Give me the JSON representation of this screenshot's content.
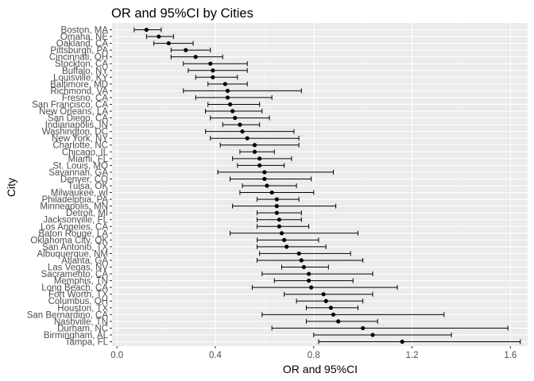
{
  "chart_data": {
    "type": "errorbar",
    "title": "OR and 95%CI by Cities",
    "xlabel": "OR and 95%CI",
    "ylabel": "City",
    "xlim": [
      -0.02,
      1.67
    ],
    "x_ticks": [
      0.0,
      0.4,
      0.8,
      1.2,
      1.6
    ],
    "x_tick_labels": [
      "0.0",
      "0.4",
      "0.8",
      "1.2",
      "1.6"
    ],
    "grid": true,
    "legend": "none",
    "points": [
      {
        "city": "Boston, MA",
        "or": 0.12,
        "lower": 0.07,
        "upper": 0.18
      },
      {
        "city": "Omaha, NE",
        "or": 0.17,
        "lower": 0.12,
        "upper": 0.23
      },
      {
        "city": "Oakland, CA",
        "or": 0.21,
        "lower": 0.15,
        "upper": 0.31
      },
      {
        "city": "Pittsburgh, PA",
        "or": 0.28,
        "lower": 0.22,
        "upper": 0.38
      },
      {
        "city": "Cincinnati, OH",
        "or": 0.32,
        "lower": 0.22,
        "upper": 0.43
      },
      {
        "city": "Stockton, CA",
        "or": 0.38,
        "lower": 0.27,
        "upper": 0.53
      },
      {
        "city": "Buffalo, NY",
        "or": 0.39,
        "lower": 0.29,
        "upper": 0.53
      },
      {
        "city": "Louisville, KY",
        "or": 0.39,
        "lower": 0.32,
        "upper": 0.49
      },
      {
        "city": "Baltimore, MD",
        "or": 0.44,
        "lower": 0.37,
        "upper": 0.53
      },
      {
        "city": "Richmond, VA",
        "or": 0.45,
        "lower": 0.27,
        "upper": 0.75
      },
      {
        "city": "Fresno, CA",
        "or": 0.45,
        "lower": 0.32,
        "upper": 0.63
      },
      {
        "city": "San Francisco, CA",
        "or": 0.46,
        "lower": 0.37,
        "upper": 0.58
      },
      {
        "city": "New Orleans, LA",
        "or": 0.47,
        "lower": 0.36,
        "upper": 0.59
      },
      {
        "city": "San Diego, CA",
        "or": 0.48,
        "lower": 0.38,
        "upper": 0.62
      },
      {
        "city": "Indianapolis, IN",
        "or": 0.5,
        "lower": 0.43,
        "upper": 0.58
      },
      {
        "city": "Washington, DC",
        "or": 0.51,
        "lower": 0.36,
        "upper": 0.72
      },
      {
        "city": "New York, NY",
        "or": 0.53,
        "lower": 0.38,
        "upper": 0.74
      },
      {
        "city": "Charlotte, NC",
        "or": 0.56,
        "lower": 0.42,
        "upper": 0.74
      },
      {
        "city": "Chicago, IL",
        "or": 0.56,
        "lower": 0.5,
        "upper": 0.64
      },
      {
        "city": "Miami, FL",
        "or": 0.58,
        "lower": 0.47,
        "upper": 0.71
      },
      {
        "city": "St. Louis, MO",
        "or": 0.58,
        "lower": 0.49,
        "upper": 0.68
      },
      {
        "city": "Savannah, GA",
        "or": 0.6,
        "lower": 0.41,
        "upper": 0.88
      },
      {
        "city": "Denver, CO",
        "or": 0.6,
        "lower": 0.46,
        "upper": 0.79
      },
      {
        "city": "Tulsa, OK",
        "or": 0.61,
        "lower": 0.51,
        "upper": 0.73
      },
      {
        "city": "Milwaukee, wI",
        "or": 0.63,
        "lower": 0.5,
        "upper": 0.8
      },
      {
        "city": "Philadelphia, PA",
        "or": 0.65,
        "lower": 0.57,
        "upper": 0.74
      },
      {
        "city": "Minneapolis, MN",
        "or": 0.65,
        "lower": 0.47,
        "upper": 0.89
      },
      {
        "city": "Detroit, MI",
        "or": 0.65,
        "lower": 0.57,
        "upper": 0.75
      },
      {
        "city": "Jacksonville, FL",
        "or": 0.66,
        "lower": 0.57,
        "upper": 0.75
      },
      {
        "city": "Los Angeles, CA",
        "or": 0.66,
        "lower": 0.57,
        "upper": 0.78
      },
      {
        "city": "Baton Rouge, LA",
        "or": 0.67,
        "lower": 0.46,
        "upper": 0.98
      },
      {
        "city": "Oklahoma City, OK",
        "or": 0.68,
        "lower": 0.57,
        "upper": 0.82
      },
      {
        "city": "San Antonio, TX",
        "or": 0.69,
        "lower": 0.57,
        "upper": 0.85
      },
      {
        "city": "Albuquerque, NM",
        "or": 0.74,
        "lower": 0.58,
        "upper": 0.95
      },
      {
        "city": "Atlanta, GA",
        "or": 0.75,
        "lower": 0.57,
        "upper": 1.0
      },
      {
        "city": "Las Vegas, NV",
        "or": 0.76,
        "lower": 0.67,
        "upper": 0.86
      },
      {
        "city": "Sacramento, CA",
        "or": 0.78,
        "lower": 0.59,
        "upper": 1.04
      },
      {
        "city": "Memphis, TN",
        "or": 0.78,
        "lower": 0.64,
        "upper": 0.96
      },
      {
        "city": "Long Beach, CA",
        "or": 0.79,
        "lower": 0.55,
        "upper": 1.14
      },
      {
        "city": "Fort Worth, TX",
        "or": 0.84,
        "lower": 0.68,
        "upper": 1.04
      },
      {
        "city": "Columbus, OH",
        "or": 0.85,
        "lower": 0.73,
        "upper": 1.0
      },
      {
        "city": "Houston, TX",
        "or": 0.87,
        "lower": 0.77,
        "upper": 0.98
      },
      {
        "city": "San Bernardino, CA",
        "or": 0.88,
        "lower": 0.59,
        "upper": 1.33
      },
      {
        "city": "Nashville, TN",
        "or": 0.9,
        "lower": 0.77,
        "upper": 1.06
      },
      {
        "city": "Durham, NC",
        "or": 1.0,
        "lower": 0.63,
        "upper": 1.59
      },
      {
        "city": "Birmingham, AL",
        "or": 1.04,
        "lower": 0.8,
        "upper": 1.36
      },
      {
        "city": "Tampa, FL",
        "or": 1.16,
        "lower": 0.82,
        "upper": 1.64
      }
    ]
  },
  "colors": {
    "panel": "#ebebeb",
    "grid_major": "#ffffff",
    "grid_minor": "#f5f5f5",
    "point": "#000000",
    "axis_text": "#4d4d4d",
    "title_text": "#000000"
  }
}
